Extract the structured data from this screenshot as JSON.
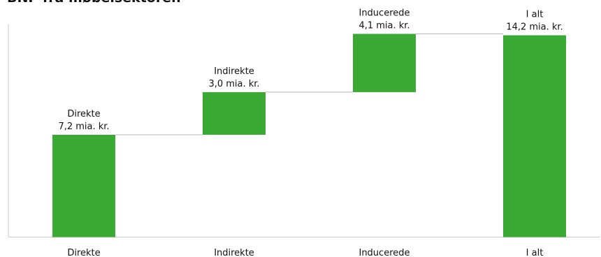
{
  "chart_data": {
    "type": "bar",
    "subtype": "waterfall",
    "title": "BNP fra møbelsektoren",
    "categories": [
      "Direkte",
      "Indirekte",
      "Inducerede",
      "I alt"
    ],
    "values": [
      7.2,
      3.0,
      4.1,
      14.2
    ],
    "bar_labels": [
      {
        "name": "Direkte",
        "value": "7,2 mia. kr."
      },
      {
        "name": "Indirekte",
        "value": "3,0 mia. kr."
      },
      {
        "name": "Inducerede",
        "value": "4,1 mia. kr."
      },
      {
        "name": "I alt",
        "value": "14,2 mia. kr."
      }
    ],
    "ylim": [
      0,
      15
    ],
    "grid": false,
    "bar_color": "#3aaa35",
    "connector_color": "#b4b4b4",
    "axis_color": "#c8c8c8"
  }
}
